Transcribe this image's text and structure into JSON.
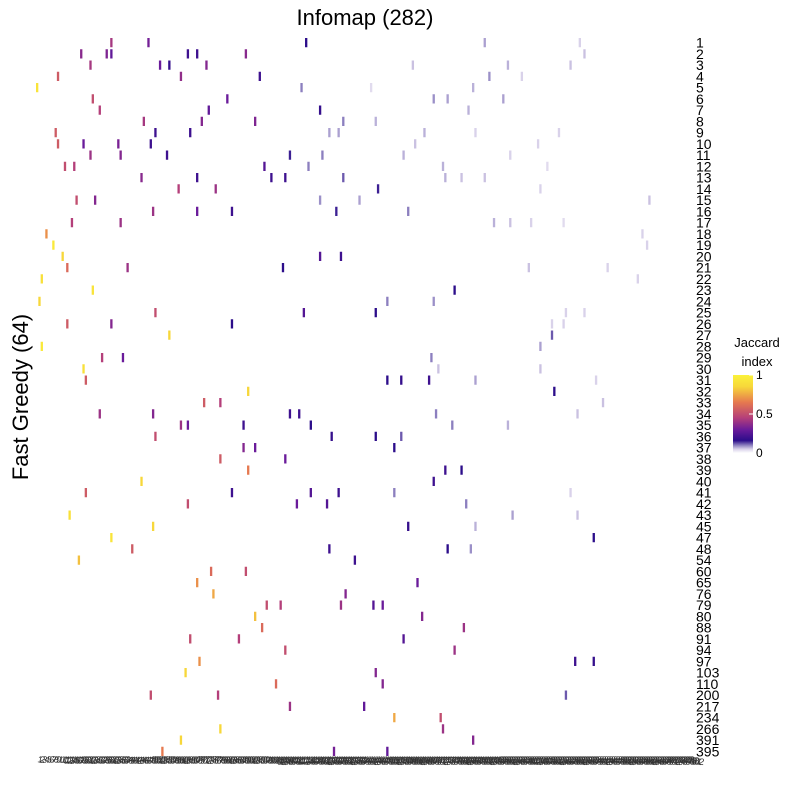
{
  "chart_data": {
    "type": "heatmap",
    "title": "Infomap (282)",
    "xlabel": "",
    "ylabel": "Fast Greedy (64)",
    "row_labels": [
      "1",
      "2",
      "3",
      "4",
      "5",
      "6",
      "7",
      "8",
      "9",
      "10",
      "11",
      "12",
      "13",
      "14",
      "15",
      "16",
      "17",
      "18",
      "19",
      "20",
      "21",
      "22",
      "23",
      "24",
      "25",
      "26",
      "27",
      "28",
      "29",
      "30",
      "31",
      "32",
      "33",
      "34",
      "35",
      "36",
      "37",
      "38",
      "39",
      "40",
      "41",
      "42",
      "43",
      "45",
      "47",
      "48",
      "54",
      "60",
      "65",
      "76",
      "79",
      "80",
      "88",
      "91",
      "94",
      "97",
      "103",
      "110",
      "200",
      "217",
      "234",
      "266",
      "391",
      "395"
    ],
    "column_count": 282,
    "legend": {
      "title": "Jaccard\nindex",
      "position": "right",
      "ticks": [
        {
          "value": 1,
          "label": "1"
        },
        {
          "value": 0.5,
          "label": "0.5"
        },
        {
          "value": 0,
          "label": "0"
        }
      ]
    },
    "colormap": {
      "stops": [
        "#ffffff",
        "#d9d2ea",
        "#8c7fbf",
        "#2c0d8a",
        "#6a1b9a",
        "#b43f7a",
        "#e6794f",
        "#f7d73a",
        "#fbf23a"
      ],
      "stop_values": [
        0,
        0.05,
        0.1,
        0.16,
        0.3,
        0.45,
        0.65,
        0.85,
        1
      ]
    },
    "cells": [
      {
        "row": "1",
        "col": 33,
        "v": 0.42
      },
      {
        "row": "1",
        "col": 49,
        "v": 0.32
      },
      {
        "row": "1",
        "col": 117,
        "v": 0.16
      },
      {
        "row": "1",
        "col": 194,
        "v": 0.08
      },
      {
        "row": "1",
        "col": 235,
        "v": 0.05
      },
      {
        "row": "2",
        "col": 20,
        "v": 0.36
      },
      {
        "row": "2",
        "col": 31,
        "v": 0.34
      },
      {
        "row": "2",
        "col": 33,
        "v": 0.28
      },
      {
        "row": "2",
        "col": 66,
        "v": 0.2
      },
      {
        "row": "2",
        "col": 70,
        "v": 0.2
      },
      {
        "row": "2",
        "col": 91,
        "v": 0.36
      },
      {
        "row": "2",
        "col": 237,
        "v": 0.06
      },
      {
        "row": "3",
        "col": 24,
        "v": 0.42
      },
      {
        "row": "3",
        "col": 54,
        "v": 0.3
      },
      {
        "row": "3",
        "col": 58,
        "v": 0.18
      },
      {
        "row": "3",
        "col": 74,
        "v": 0.35
      },
      {
        "row": "3",
        "col": 163,
        "v": 0.06
      },
      {
        "row": "3",
        "col": 204,
        "v": 0.07
      },
      {
        "row": "3",
        "col": 231,
        "v": 0.06
      },
      {
        "row": "4",
        "col": 10,
        "v": 0.55
      },
      {
        "row": "4",
        "col": 63,
        "v": 0.38
      },
      {
        "row": "4",
        "col": 97,
        "v": 0.2
      },
      {
        "row": "4",
        "col": 196,
        "v": 0.09
      },
      {
        "row": "4",
        "col": 210,
        "v": 0.05
      },
      {
        "row": "5",
        "col": 1,
        "v": 0.92
      },
      {
        "row": "5",
        "col": 115,
        "v": 0.1
      },
      {
        "row": "5",
        "col": 145,
        "v": 0.04
      },
      {
        "row": "5",
        "col": 189,
        "v": 0.07
      },
      {
        "row": "6",
        "col": 25,
        "v": 0.5
      },
      {
        "row": "6",
        "col": 83,
        "v": 0.3
      },
      {
        "row": "6",
        "col": 172,
        "v": 0.09
      },
      {
        "row": "6",
        "col": 178,
        "v": 0.08
      },
      {
        "row": "6",
        "col": 202,
        "v": 0.08
      },
      {
        "row": "7",
        "col": 28,
        "v": 0.45
      },
      {
        "row": "7",
        "col": 75,
        "v": 0.28
      },
      {
        "row": "7",
        "col": 123,
        "v": 0.18
      },
      {
        "row": "7",
        "col": 187,
        "v": 0.07
      },
      {
        "row": "8",
        "col": 47,
        "v": 0.42
      },
      {
        "row": "8",
        "col": 72,
        "v": 0.35
      },
      {
        "row": "8",
        "col": 95,
        "v": 0.34
      },
      {
        "row": "8",
        "col": 133,
        "v": 0.1
      },
      {
        "row": "8",
        "col": 147,
        "v": 0.07
      },
      {
        "row": "9",
        "col": 9,
        "v": 0.55
      },
      {
        "row": "9",
        "col": 52,
        "v": 0.2
      },
      {
        "row": "9",
        "col": 67,
        "v": 0.2
      },
      {
        "row": "9",
        "col": 127,
        "v": 0.08
      },
      {
        "row": "9",
        "col": 131,
        "v": 0.08
      },
      {
        "row": "9",
        "col": 168,
        "v": 0.07
      },
      {
        "row": "9",
        "col": 190,
        "v": 0.05
      },
      {
        "row": "9",
        "col": 226,
        "v": 0.05
      },
      {
        "row": "10",
        "col": 10,
        "v": 0.55
      },
      {
        "row": "10",
        "col": 21,
        "v": 0.3
      },
      {
        "row": "10",
        "col": 36,
        "v": 0.33
      },
      {
        "row": "10",
        "col": 50,
        "v": 0.2
      },
      {
        "row": "10",
        "col": 164,
        "v": 0.06
      },
      {
        "row": "10",
        "col": 217,
        "v": 0.05
      },
      {
        "row": "11",
        "col": 24,
        "v": 0.4
      },
      {
        "row": "11",
        "col": 37,
        "v": 0.35
      },
      {
        "row": "11",
        "col": 57,
        "v": 0.2
      },
      {
        "row": "11",
        "col": 110,
        "v": 0.15
      },
      {
        "row": "11",
        "col": 124,
        "v": 0.1
      },
      {
        "row": "11",
        "col": 159,
        "v": 0.07
      },
      {
        "row": "11",
        "col": 205,
        "v": 0.05
      },
      {
        "row": "12",
        "col": 13,
        "v": 0.5
      },
      {
        "row": "12",
        "col": 17,
        "v": 0.45
      },
      {
        "row": "12",
        "col": 99,
        "v": 0.25
      },
      {
        "row": "12",
        "col": 118,
        "v": 0.1
      },
      {
        "row": "12",
        "col": 176,
        "v": 0.07
      },
      {
        "row": "12",
        "col": 221,
        "v": 0.04
      },
      {
        "row": "13",
        "col": 46,
        "v": 0.36
      },
      {
        "row": "13",
        "col": 70,
        "v": 0.2
      },
      {
        "row": "13",
        "col": 102,
        "v": 0.2
      },
      {
        "row": "13",
        "col": 108,
        "v": 0.2
      },
      {
        "row": "13",
        "col": 133,
        "v": 0.12
      },
      {
        "row": "13",
        "col": 177,
        "v": 0.07
      },
      {
        "row": "13",
        "col": 184,
        "v": 0.06
      },
      {
        "row": "13",
        "col": 194,
        "v": 0.06
      },
      {
        "row": "14",
        "col": 62,
        "v": 0.45
      },
      {
        "row": "14",
        "col": 78,
        "v": 0.4
      },
      {
        "row": "14",
        "col": 148,
        "v": 0.15
      },
      {
        "row": "14",
        "col": 218,
        "v": 0.05
      },
      {
        "row": "15",
        "col": 18,
        "v": 0.5
      },
      {
        "row": "15",
        "col": 26,
        "v": 0.35
      },
      {
        "row": "15",
        "col": 123,
        "v": 0.09
      },
      {
        "row": "15",
        "col": 140,
        "v": 0.08
      },
      {
        "row": "15",
        "col": 265,
        "v": 0.06
      },
      {
        "row": "16",
        "col": 51,
        "v": 0.4
      },
      {
        "row": "16",
        "col": 70,
        "v": 0.3
      },
      {
        "row": "16",
        "col": 85,
        "v": 0.2
      },
      {
        "row": "16",
        "col": 130,
        "v": 0.15
      },
      {
        "row": "16",
        "col": 161,
        "v": 0.1
      },
      {
        "row": "17",
        "col": 16,
        "v": 0.45
      },
      {
        "row": "17",
        "col": 37,
        "v": 0.4
      },
      {
        "row": "17",
        "col": 198,
        "v": 0.07
      },
      {
        "row": "17",
        "col": 205,
        "v": 0.06
      },
      {
        "row": "17",
        "col": 214,
        "v": 0.05
      },
      {
        "row": "17",
        "col": 228,
        "v": 0.04
      },
      {
        "row": "18",
        "col": 5,
        "v": 0.7
      },
      {
        "row": "18",
        "col": 262,
        "v": 0.05
      },
      {
        "row": "19",
        "col": 8,
        "v": 0.95
      },
      {
        "row": "19",
        "col": 264,
        "v": 0.05
      },
      {
        "row": "20",
        "col": 12,
        "v": 0.85
      },
      {
        "row": "20",
        "col": 123,
        "v": 0.25
      },
      {
        "row": "20",
        "col": 132,
        "v": 0.2
      },
      {
        "row": "21",
        "col": 14,
        "v": 0.6
      },
      {
        "row": "21",
        "col": 40,
        "v": 0.4
      },
      {
        "row": "21",
        "col": 107,
        "v": 0.16
      },
      {
        "row": "21",
        "col": 213,
        "v": 0.06
      },
      {
        "row": "21",
        "col": 247,
        "v": 0.05
      },
      {
        "row": "22",
        "col": 3,
        "v": 0.9
      },
      {
        "row": "22",
        "col": 260,
        "v": 0.05
      },
      {
        "row": "23",
        "col": 25,
        "v": 0.92
      },
      {
        "row": "23",
        "col": 181,
        "v": 0.16
      },
      {
        "row": "24",
        "col": 2,
        "v": 0.85
      },
      {
        "row": "24",
        "col": 152,
        "v": 0.1
      },
      {
        "row": "24",
        "col": 172,
        "v": 0.09
      },
      {
        "row": "25",
        "col": 52,
        "v": 0.5
      },
      {
        "row": "25",
        "col": 116,
        "v": 0.25
      },
      {
        "row": "25",
        "col": 147,
        "v": 0.16
      },
      {
        "row": "25",
        "col": 229,
        "v": 0.05
      },
      {
        "row": "25",
        "col": 237,
        "v": 0.05
      },
      {
        "row": "26",
        "col": 14,
        "v": 0.55
      },
      {
        "row": "26",
        "col": 33,
        "v": 0.35
      },
      {
        "row": "26",
        "col": 85,
        "v": 0.16
      },
      {
        "row": "26",
        "col": 223,
        "v": 0.05
      },
      {
        "row": "26",
        "col": 228,
        "v": 0.05
      },
      {
        "row": "27",
        "col": 58,
        "v": 0.85
      },
      {
        "row": "27",
        "col": 223,
        "v": 0.12
      },
      {
        "row": "28",
        "col": 3,
        "v": 0.95
      },
      {
        "row": "28",
        "col": 218,
        "v": 0.08
      },
      {
        "row": "29",
        "col": 29,
        "v": 0.45
      },
      {
        "row": "29",
        "col": 38,
        "v": 0.3
      },
      {
        "row": "29",
        "col": 171,
        "v": 0.1
      },
      {
        "row": "30",
        "col": 21,
        "v": 0.9
      },
      {
        "row": "30",
        "col": 174,
        "v": 0.06
      },
      {
        "row": "30",
        "col": 218,
        "v": 0.06
      },
      {
        "row": "31",
        "col": 22,
        "v": 0.55
      },
      {
        "row": "31",
        "col": 152,
        "v": 0.16
      },
      {
        "row": "31",
        "col": 158,
        "v": 0.18
      },
      {
        "row": "31",
        "col": 170,
        "v": 0.2
      },
      {
        "row": "31",
        "col": 190,
        "v": 0.08
      },
      {
        "row": "31",
        "col": 242,
        "v": 0.05
      },
      {
        "row": "32",
        "col": 92,
        "v": 0.85
      },
      {
        "row": "32",
        "col": 224,
        "v": 0.16
      },
      {
        "row": "33",
        "col": 73,
        "v": 0.55
      },
      {
        "row": "33",
        "col": 80,
        "v": 0.45
      },
      {
        "row": "33",
        "col": 245,
        "v": 0.06
      },
      {
        "row": "34",
        "col": 28,
        "v": 0.4
      },
      {
        "row": "34",
        "col": 51,
        "v": 0.35
      },
      {
        "row": "34",
        "col": 110,
        "v": 0.2
      },
      {
        "row": "34",
        "col": 114,
        "v": 0.2
      },
      {
        "row": "34",
        "col": 173,
        "v": 0.1
      },
      {
        "row": "34",
        "col": 234,
        "v": 0.06
      },
      {
        "row": "35",
        "col": 63,
        "v": 0.4
      },
      {
        "row": "35",
        "col": 66,
        "v": 0.3
      },
      {
        "row": "35",
        "col": 90,
        "v": 0.2
      },
      {
        "row": "35",
        "col": 119,
        "v": 0.16
      },
      {
        "row": "35",
        "col": 180,
        "v": 0.1
      },
      {
        "row": "35",
        "col": 204,
        "v": 0.07
      },
      {
        "row": "36",
        "col": 52,
        "v": 0.5
      },
      {
        "row": "36",
        "col": 128,
        "v": 0.18
      },
      {
        "row": "36",
        "col": 147,
        "v": 0.16
      },
      {
        "row": "36",
        "col": 158,
        "v": 0.12
      },
      {
        "row": "37",
        "col": 90,
        "v": 0.35
      },
      {
        "row": "37",
        "col": 95,
        "v": 0.3
      },
      {
        "row": "37",
        "col": 155,
        "v": 0.16
      },
      {
        "row": "38",
        "col": 80,
        "v": 0.55
      },
      {
        "row": "38",
        "col": 108,
        "v": 0.3
      },
      {
        "row": "39",
        "col": 92,
        "v": 0.65
      },
      {
        "row": "39",
        "col": 177,
        "v": 0.2
      },
      {
        "row": "39",
        "col": 184,
        "v": 0.16
      },
      {
        "row": "40",
        "col": 46,
        "v": 0.85
      },
      {
        "row": "40",
        "col": 172,
        "v": 0.2
      },
      {
        "row": "41",
        "col": 22,
        "v": 0.55
      },
      {
        "row": "41",
        "col": 85,
        "v": 0.2
      },
      {
        "row": "41",
        "col": 119,
        "v": 0.25
      },
      {
        "row": "41",
        "col": 131,
        "v": 0.2
      },
      {
        "row": "41",
        "col": 155,
        "v": 0.1
      },
      {
        "row": "41",
        "col": 231,
        "v": 0.05
      },
      {
        "row": "42",
        "col": 66,
        "v": 0.5
      },
      {
        "row": "42",
        "col": 113,
        "v": 0.3
      },
      {
        "row": "42",
        "col": 126,
        "v": 0.25
      },
      {
        "row": "42",
        "col": 186,
        "v": 0.1
      },
      {
        "row": "43",
        "col": 15,
        "v": 0.9
      },
      {
        "row": "43",
        "col": 206,
        "v": 0.08
      },
      {
        "row": "43",
        "col": 234,
        "v": 0.06
      },
      {
        "row": "45",
        "col": 51,
        "v": 0.85
      },
      {
        "row": "45",
        "col": 161,
        "v": 0.18
      },
      {
        "row": "45",
        "col": 190,
        "v": 0.07
      },
      {
        "row": "47",
        "col": 33,
        "v": 0.92
      },
      {
        "row": "47",
        "col": 241,
        "v": 0.16
      },
      {
        "row": "48",
        "col": 42,
        "v": 0.55
      },
      {
        "row": "48",
        "col": 127,
        "v": 0.2
      },
      {
        "row": "48",
        "col": 178,
        "v": 0.16
      },
      {
        "row": "48",
        "col": 188,
        "v": 0.09
      },
      {
        "row": "54",
        "col": 19,
        "v": 0.8
      },
      {
        "row": "54",
        "col": 138,
        "v": 0.2
      },
      {
        "row": "60",
        "col": 76,
        "v": 0.6
      },
      {
        "row": "60",
        "col": 91,
        "v": 0.5
      },
      {
        "row": "65",
        "col": 70,
        "v": 0.7
      },
      {
        "row": "65",
        "col": 165,
        "v": 0.3
      },
      {
        "row": "76",
        "col": 77,
        "v": 0.75
      },
      {
        "row": "76",
        "col": 134,
        "v": 0.35
      },
      {
        "row": "79",
        "col": 100,
        "v": 0.5
      },
      {
        "row": "79",
        "col": 106,
        "v": 0.45
      },
      {
        "row": "79",
        "col": 132,
        "v": 0.4
      },
      {
        "row": "79",
        "col": 146,
        "v": 0.25
      },
      {
        "row": "79",
        "col": 150,
        "v": 0.3
      },
      {
        "row": "80",
        "col": 95,
        "v": 0.8
      },
      {
        "row": "80",
        "col": 167,
        "v": 0.35
      },
      {
        "row": "88",
        "col": 98,
        "v": 0.6
      },
      {
        "row": "88",
        "col": 185,
        "v": 0.4
      },
      {
        "row": "91",
        "col": 67,
        "v": 0.5
      },
      {
        "row": "91",
        "col": 88,
        "v": 0.45
      },
      {
        "row": "91",
        "col": 159,
        "v": 0.25
      },
      {
        "row": "94",
        "col": 108,
        "v": 0.5
      },
      {
        "row": "94",
        "col": 181,
        "v": 0.4
      },
      {
        "row": "97",
        "col": 71,
        "v": 0.7
      },
      {
        "row": "97",
        "col": 233,
        "v": 0.2
      },
      {
        "row": "97",
        "col": 241,
        "v": 0.18
      },
      {
        "row": "103",
        "col": 65,
        "v": 0.85
      },
      {
        "row": "103",
        "col": 147,
        "v": 0.35
      },
      {
        "row": "110",
        "col": 104,
        "v": 0.6
      },
      {
        "row": "110",
        "col": 150,
        "v": 0.35
      },
      {
        "row": "200",
        "col": 50,
        "v": 0.5
      },
      {
        "row": "200",
        "col": 79,
        "v": 0.45
      },
      {
        "row": "200",
        "col": 229,
        "v": 0.12
      },
      {
        "row": "217",
        "col": 110,
        "v": 0.4
      },
      {
        "row": "217",
        "col": 142,
        "v": 0.28
      },
      {
        "row": "234",
        "col": 155,
        "v": 0.75
      },
      {
        "row": "234",
        "col": 175,
        "v": 0.5
      },
      {
        "row": "266",
        "col": 80,
        "v": 0.85
      },
      {
        "row": "266",
        "col": 176,
        "v": 0.4
      },
      {
        "row": "391",
        "col": 63,
        "v": 0.85
      },
      {
        "row": "391",
        "col": 189,
        "v": 0.35
      },
      {
        "row": "395",
        "col": 55,
        "v": 0.65
      },
      {
        "row": "395",
        "col": 129,
        "v": 0.32
      },
      {
        "row": "395",
        "col": 152,
        "v": 0.28
      }
    ]
  }
}
